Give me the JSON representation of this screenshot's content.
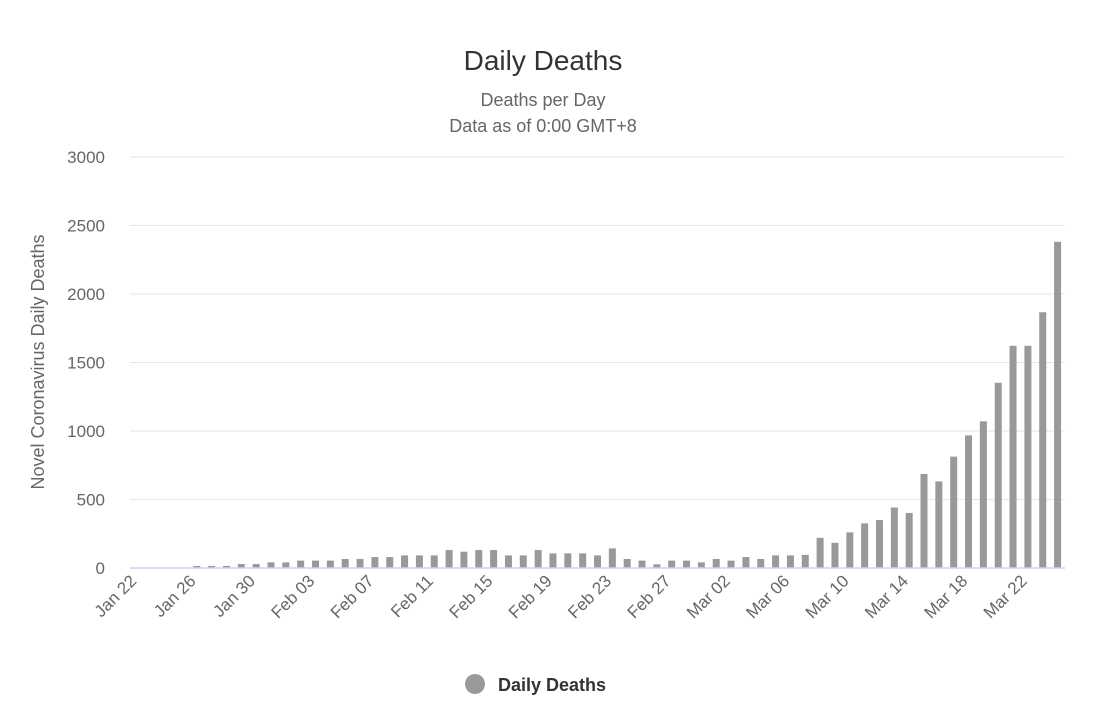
{
  "chart_data": {
    "type": "bar",
    "title": "Daily Deaths",
    "subtitle": [
      "Deaths per Day",
      "Data as of 0:00 GMT+8"
    ],
    "xlabel": "",
    "ylabel": "Novel Coronavirus Daily Deaths",
    "ylim": [
      0,
      3000
    ],
    "yticks": [
      0,
      500,
      1000,
      1500,
      2000,
      2500,
      3000
    ],
    "grid": true,
    "legend": {
      "position": "bottom-center",
      "entries": [
        "Daily Deaths"
      ]
    },
    "color": "#999999",
    "categories": [
      "Jan 22",
      "Jan 23",
      "Jan 24",
      "Jan 25",
      "Jan 26",
      "Jan 27",
      "Jan 28",
      "Jan 29",
      "Jan 30",
      "Jan 31",
      "Feb 01",
      "Feb 02",
      "Feb 03",
      "Feb 04",
      "Feb 05",
      "Feb 06",
      "Feb 07",
      "Feb 08",
      "Feb 09",
      "Feb 10",
      "Feb 11",
      "Feb 12",
      "Feb 13",
      "Feb 14",
      "Feb 15",
      "Feb 16",
      "Feb 17",
      "Feb 18",
      "Feb 19",
      "Feb 20",
      "Feb 21",
      "Feb 22",
      "Feb 23",
      "Feb 24",
      "Feb 25",
      "Feb 26",
      "Feb 27",
      "Feb 28",
      "Feb 29",
      "Mar 01",
      "Mar 02",
      "Mar 03",
      "Mar 04",
      "Mar 05",
      "Mar 06",
      "Mar 07",
      "Mar 08",
      "Mar 09",
      "Mar 10",
      "Mar 11",
      "Mar 12",
      "Mar 13",
      "Mar 14",
      "Mar 15",
      "Mar 16",
      "Mar 17",
      "Mar 18",
      "Mar 19",
      "Mar 20",
      "Mar 21",
      "Mar 22",
      "Mar 23",
      "Mar 24"
    ],
    "xtick_labels": [
      "Jan 22",
      "Jan 26",
      "Jan 30",
      "Feb 03",
      "Feb 07",
      "Feb 11",
      "Feb 15",
      "Feb 19",
      "Feb 23",
      "Feb 27",
      "Mar 02",
      "Mar 06",
      "Mar 10",
      "Mar 14",
      "Mar 18",
      "Mar 22"
    ],
    "series": [
      {
        "name": "Daily Deaths",
        "values": [
          0,
          0,
          0,
          0,
          15,
          15,
          15,
          29,
          29,
          41,
          41,
          54,
          54,
          54,
          66,
          66,
          80,
          80,
          92,
          92,
          92,
          131,
          119,
          131,
          131,
          92,
          92,
          131,
          107,
          107,
          107,
          92,
          143,
          66,
          54,
          27,
          54,
          54,
          41,
          66,
          54,
          80,
          66,
          92,
          92,
          96,
          220,
          184,
          260,
          326,
          350,
          441,
          402,
          686,
          632,
          813,
          968,
          1071,
          1352,
          1622,
          1622,
          1867,
          2381
        ]
      }
    ]
  }
}
